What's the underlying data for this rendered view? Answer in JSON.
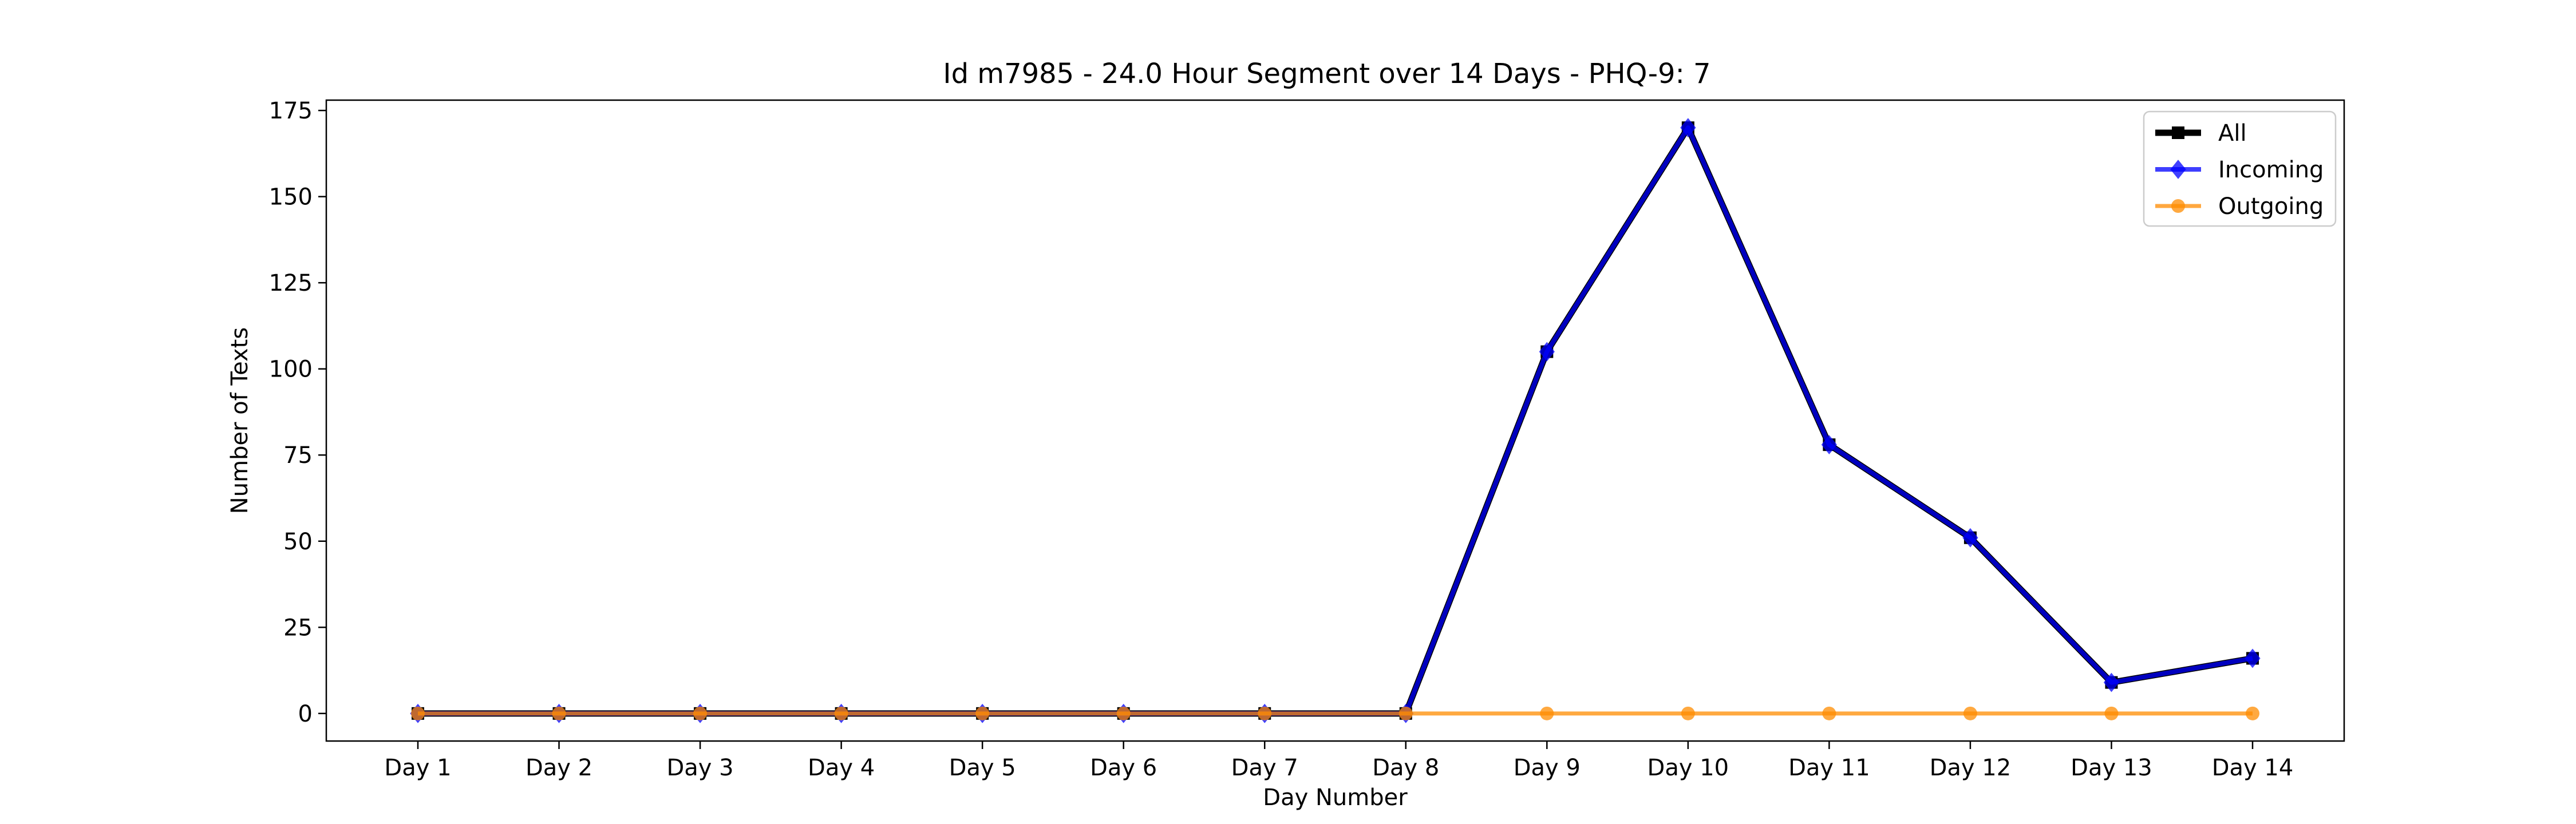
{
  "chart_data": {
    "type": "line",
    "title": "Id m7985 - 24.0 Hour Segment over 14 Days - PHQ-9: 7",
    "xlabel": "Day Number",
    "ylabel": "Number of Texts",
    "categories": [
      "Day 1",
      "Day 2",
      "Day 3",
      "Day 4",
      "Day 5",
      "Day 6",
      "Day 7",
      "Day 8",
      "Day 9",
      "Day 10",
      "Day 11",
      "Day 12",
      "Day 13",
      "Day 14"
    ],
    "ylim": [
      -8,
      178
    ],
    "yticks": [
      0,
      25,
      50,
      75,
      100,
      125,
      150,
      175
    ],
    "grid": false,
    "legend_position": "top-right",
    "series": [
      {
        "name": "All",
        "color": "#000000",
        "marker": "square",
        "values": [
          0,
          0,
          0,
          0,
          0,
          0,
          0,
          0,
          105,
          170,
          78,
          51,
          9,
          16
        ]
      },
      {
        "name": "Incoming",
        "color": "#0000ff",
        "marker": "diamond",
        "values": [
          0,
          0,
          0,
          0,
          0,
          0,
          0,
          0,
          105,
          170,
          78,
          51,
          9,
          16
        ]
      },
      {
        "name": "Outgoing",
        "color": "#ff8c00",
        "marker": "circle",
        "values": [
          0,
          0,
          0,
          0,
          0,
          0,
          0,
          0,
          0,
          0,
          0,
          0,
          0,
          0
        ]
      }
    ]
  }
}
